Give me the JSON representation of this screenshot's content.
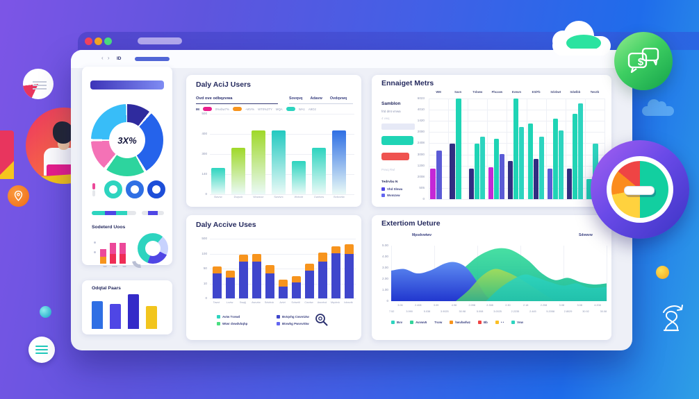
{
  "window": {
    "traffic_lights": [
      "#f4445e",
      "#f5a623",
      "#4ade80"
    ],
    "nav_arrows": "‹ ›",
    "nav_label": "ID"
  },
  "sidebar": {
    "section_title": "Sodeterd Uoos",
    "bottom_title": "Odqtal Paars"
  },
  "cards": {
    "daily": {
      "title": "Daly AciJ Users",
      "subtitle": "Ovd ove odbqzvwa",
      "tabs": [
        "Sovqvq",
        "Adavw",
        "Ovdqvwq"
      ],
      "legend_tokens": [
        {
          "t": "IM",
          "b": true
        },
        {
          "pill": "#e91e8c"
        },
        {
          "t": "0%vbw7%"
        },
        {
          "pill": "#f7941d"
        },
        {
          "t": "~WV%"
        },
        {
          "t": "WT0%2TY"
        },
        {
          "t": "MQA"
        },
        {
          "pill": "#2dd4bf"
        },
        {
          "t": "WA1"
        },
        {
          "t": "A9O2"
        }
      ]
    },
    "engagement": {
      "title": "Ennaiget Metrs",
      "panel": {
        "heading": "Samblon",
        "sub": "frtd dmt vmwa",
        "sub2": "4 vwq",
        "buttons": [
          {
            "c": "#1fd4b5"
          },
          {
            "c": "#ef5350"
          }
        ],
        "note": "Pvwq Rwl",
        "legend_title": "Tedrvbu N",
        "legend": [
          {
            "c": "#4f46e5",
            "t": "Vhd Slnwa"
          },
          {
            "c": "#6366f1",
            "t": "Wvmzvw"
          }
        ]
      }
    },
    "active": {
      "title": "Daly Accive Uses",
      "legend": [
        {
          "c": "#2dd4bf",
          "t": "Avtw Tvvwd"
        },
        {
          "c": "#3f46cc",
          "t": "Bvtqvhg Cwvvtztw"
        },
        {
          "c": "#4ade80",
          "t": "Wtwr dvwdvbqhp"
        },
        {
          "c": "#6366f1",
          "t": "Btvwhg Pwvvvtttw"
        }
      ]
    },
    "retention": {
      "title": "Extertiom Ueture",
      "label_left": "Mpsdvwtwv",
      "label_right": "Sdvwvw",
      "legend": [
        {
          "c": "#2dd4bf",
          "t": "Bvv"
        },
        {
          "c": "#34d399",
          "t": "Avvwv5"
        },
        {
          "t": "Tvvw"
        },
        {
          "c": "#f7941d",
          "t": "hwvbwfwz"
        },
        {
          "c": "#ef4444",
          "t": "Bb"
        },
        {
          "c": "#fbbf24",
          "t": "• •"
        },
        {
          "c": "#2dd4bf",
          "t": "Vvw"
        }
      ]
    }
  },
  "chart_data": [
    {
      "id": "daily-users-bar",
      "type": "bar",
      "y_ticks": [
        "500",
        "400",
        "300",
        "140",
        "0"
      ],
      "x_labels": [
        "Bwvrw",
        "Dvqvvb",
        "Wvwzvcr",
        "Swvtvrx",
        "Wvtvvtr",
        "Cwvtvrw",
        "Bvbvvrtw"
      ],
      "bars": [
        {
          "v": 0.33,
          "top": "#2dd4bf"
        },
        {
          "v": 0.58,
          "top": "#9fd829"
        },
        {
          "v": 0.79,
          "top": "#9fd829"
        },
        {
          "v": 0.79,
          "top": "#22c9c0"
        },
        {
          "v": 0.41,
          "top": "#2dd4bf"
        },
        {
          "v": 0.58,
          "top": "#2dd4bf"
        },
        {
          "v": 0.79,
          "top": "#2f6fe4"
        }
      ],
      "base_color": "#eafaf7"
    },
    {
      "id": "engagement-grouped-bar",
      "type": "bar",
      "day_labels": [
        "WM",
        "Savn",
        "Tvbww",
        "Phcavw",
        "Evwvn",
        "ES/Fb",
        "Sdvbwt",
        "Sdwlbb",
        "Twv2b"
      ],
      "y_ticks": [
        "6023",
        "4010",
        "1420",
        "2000",
        "2408",
        "3000",
        "1200",
        "2008",
        "505",
        "0"
      ],
      "groups": [
        [
          {
            "c": "#c428d6",
            "v": 0.3
          },
          {
            "c": "#5b5bd6",
            "v": 0.48
          }
        ],
        [
          {
            "c": "#312e81",
            "v": 0.55
          },
          {
            "c": "#1fd4b5",
            "v": 1.0
          }
        ],
        [
          {
            "c": "#312e81",
            "v": 0.3
          },
          {
            "c": "#1fd4b5",
            "v": 0.55
          },
          {
            "c": "#2dd4bf",
            "v": 0.62
          }
        ],
        [
          {
            "c": "#c428d6",
            "v": 0.32
          },
          {
            "c": "#1fd4b5",
            "v": 0.6
          },
          {
            "c": "#5b5bd6",
            "v": 0.45
          }
        ],
        [
          {
            "c": "#312e81",
            "v": 0.38
          },
          {
            "c": "#1fd4b5",
            "v": 1.0
          },
          {
            "c": "#2dd4bf",
            "v": 0.72
          }
        ],
        [
          {
            "c": "#1fd4b5",
            "v": 0.75
          },
          {
            "c": "#312e81",
            "v": 0.4
          },
          {
            "c": "#2dd4bf",
            "v": 0.62
          }
        ],
        [
          {
            "c": "#5b5bd6",
            "v": 0.3
          },
          {
            "c": "#1fd4b5",
            "v": 0.8
          },
          {
            "c": "#2dd4bf",
            "v": 0.68
          }
        ],
        [
          {
            "c": "#312e81",
            "v": 0.3
          },
          {
            "c": "#1fd4b5",
            "v": 0.85
          },
          {
            "c": "#2dd4bf",
            "v": 0.95
          }
        ],
        [
          {
            "c": "#1fd4b5",
            "v": 0.2
          },
          {
            "c": "#2dd4bf",
            "v": 0.55
          }
        ]
      ]
    },
    {
      "id": "active-users-stacked",
      "type": "bar",
      "stacked": true,
      "y_ticks": [
        "500",
        "100",
        "50",
        "10",
        "0"
      ],
      "x_labels": [
        "Tawvt",
        "Lvvtw",
        "Swqtj",
        "Awvztw",
        "Sdvbtvk",
        "Avtvt",
        "Svbwttl",
        "Cwvbw",
        "Awvrtvd",
        "Mqvbvk",
        "Ivbwvtk"
      ],
      "body_color": "#3f46cc",
      "cap_color": "#f7941d",
      "bars": [
        [
          0.42,
          0.12
        ],
        [
          0.35,
          0.12
        ],
        [
          0.62,
          0.12
        ],
        [
          0.62,
          0.13
        ],
        [
          0.42,
          0.14
        ],
        [
          0.2,
          0.12
        ],
        [
          0.27,
          0.1
        ],
        [
          0.47,
          0.12
        ],
        [
          0.62,
          0.15
        ],
        [
          0.76,
          0.12
        ],
        [
          0.74,
          0.16
        ]
      ]
    },
    {
      "id": "retention-area",
      "type": "area",
      "y_ticks": [
        "5.00",
        "4.00",
        "3.00",
        "2.00",
        "1.00",
        "0"
      ],
      "x_row1": [
        "3.06",
        "2.408",
        "3.09",
        "4.98",
        "2.098",
        "2.308",
        "2.30",
        "2.18",
        "2.208",
        "3.08",
        "3.08",
        "4.208"
      ],
      "x_row2": [
        "7.52",
        "3.990",
        "5.038",
        "3.9025",
        "30.98",
        "5.008",
        "3.0025",
        "2.2235",
        "2.445",
        "5.2058",
        "2.8029",
        "30.92",
        "30.08"
      ],
      "areas": [
        {
          "name": "back-ridge",
          "fill": [
            "#3ede9e",
            "#17b796"
          ],
          "opacity": 0.95,
          "points": [
            [
              0,
              0.38
            ],
            [
              8,
              0.35
            ],
            [
              16,
              0.42
            ],
            [
              24,
              0.4
            ],
            [
              32,
              0.55
            ],
            [
              40,
              0.8
            ],
            [
              47,
              0.93
            ],
            [
              53,
              0.95
            ],
            [
              58,
              0.88
            ],
            [
              64,
              0.72
            ],
            [
              70,
              0.5
            ],
            [
              76,
              0.38
            ],
            [
              82,
              0.42
            ],
            [
              88,
              0.34
            ],
            [
              94,
              0.3
            ],
            [
              100,
              0.32
            ]
          ]
        },
        {
          "name": "blue-peak",
          "fill": [
            "#5e8cf2",
            "#2137cf"
          ],
          "opacity": 1,
          "points": [
            [
              0,
              0.55
            ],
            [
              6,
              0.58
            ],
            [
              12,
              0.5
            ],
            [
              18,
              0.55
            ],
            [
              25,
              0.68
            ],
            [
              30,
              0.7
            ],
            [
              35,
              0.6
            ],
            [
              40,
              0.34
            ],
            [
              44,
              0.1
            ],
            [
              47,
              0
            ]
          ]
        },
        {
          "name": "mid-hill",
          "fill": [
            "#a8dd57",
            "#3cbf7d"
          ],
          "opacity": 0.9,
          "points": [
            [
              30,
              0
            ],
            [
              36,
              0.2
            ],
            [
              42,
              0.45
            ],
            [
              48,
              0.58
            ],
            [
              54,
              0.52
            ],
            [
              60,
              0.4
            ],
            [
              66,
              0.25
            ],
            [
              72,
              0.1
            ],
            [
              76,
              0
            ]
          ]
        },
        {
          "name": "front-teal",
          "fill": [
            "#2dd4bf",
            "#21c2ae"
          ],
          "opacity": 0.88,
          "points": [
            [
              44,
              0
            ],
            [
              50,
              0.22
            ],
            [
              56,
              0.38
            ],
            [
              62,
              0.48
            ],
            [
              68,
              0.42
            ],
            [
              74,
              0.34
            ],
            [
              80,
              0.28
            ],
            [
              86,
              0.32
            ],
            [
              92,
              0.24
            ],
            [
              100,
              0.26
            ]
          ]
        }
      ]
    },
    {
      "id": "sidebar-donut",
      "type": "pie",
      "center_label": "3X%",
      "segments": [
        {
          "c": "#2f2b9e",
          "from": 0,
          "to": 38
        },
        {
          "c": "#2563eb",
          "from": 42,
          "to": 148
        },
        {
          "c": "#2dd49e",
          "from": 152,
          "to": 215
        },
        {
          "c": "#f472b6",
          "from": 220,
          "to": 268
        },
        {
          "c": "#38bdf8",
          "from": 272,
          "to": 358
        }
      ]
    },
    {
      "id": "engaged-mini-bars",
      "type": "bar",
      "stacked": true,
      "bars": [
        [
          {
            "c": "#f7941d",
            "h": 10
          },
          {
            "c": "#ec4899",
            "h": 11
          }
        ],
        [
          {
            "c": "#ef2d56",
            "h": 14
          },
          {
            "c": "#ec4899",
            "h": 16
          }
        ],
        [
          {
            "c": "#ef2d56",
            "h": 14
          },
          {
            "c": "#ec4899",
            "h": 16
          }
        ]
      ],
      "labels": [
        "ww",
        "www",
        "ww"
      ]
    },
    {
      "id": "chapter-bars",
      "type": "bar",
      "bars": [
        {
          "c": "#2f6fe4",
          "v": 40
        },
        {
          "c": "#4f46e5",
          "v": 36
        },
        {
          "c": "#342bc8",
          "v": 50
        },
        {
          "c": "#f2c51d",
          "v": 33
        }
      ]
    },
    {
      "id": "kpi-rings",
      "type": "pie",
      "rings": [
        "#2dd4bf",
        "#2f6fe4",
        "#1d4ed8"
      ]
    },
    {
      "id": "progress-segments",
      "type": "bar",
      "segments_a": [
        [
          "#2dd4bf",
          30
        ],
        [
          "#4f46e5",
          25
        ],
        [
          "#2dd4bf",
          25
        ],
        [
          "#e5e7eb",
          20
        ]
      ],
      "segments_b": [
        [
          "#e5e7eb",
          28
        ],
        [
          "#4f46e5",
          44
        ],
        [
          "#e5e7eb",
          28
        ]
      ]
    }
  ]
}
